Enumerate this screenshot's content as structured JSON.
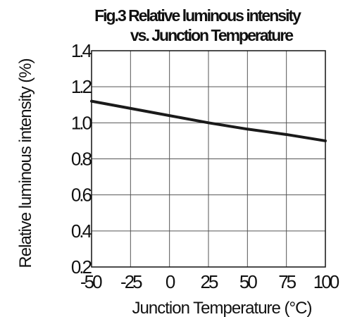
{
  "chart_data": {
    "type": "line",
    "title": "Fig.3 Relative luminous intensity",
    "subtitle": "vs. Junction Temperature",
    "xlabel": "Junction Temperature (°C)",
    "ylabel": "Relative luminous intensity (%)",
    "xlim": [
      -50,
      100
    ],
    "ylim": [
      0.2,
      1.4
    ],
    "x_ticks": [
      -50,
      -25,
      0,
      25,
      50,
      75,
      100
    ],
    "x_tick_labels": [
      "-50",
      "-25",
      "0",
      "25",
      "50",
      "75",
      "100"
    ],
    "y_ticks": [
      0.2,
      0.4,
      0.6,
      0.8,
      1.0,
      1.2,
      1.4
    ],
    "y_tick_labels": [
      "0.2",
      "0.4",
      "0.6",
      "0.8",
      "1.0",
      "1.2",
      "1.4"
    ],
    "grid": true,
    "series": [
      {
        "x": [
          -50,
          -25,
          0,
          25,
          50,
          75,
          100
        ],
        "y": [
          1.12,
          1.08,
          1.04,
          1.0,
          0.965,
          0.935,
          0.9
        ],
        "color": "#1a1a1a"
      }
    ]
  }
}
